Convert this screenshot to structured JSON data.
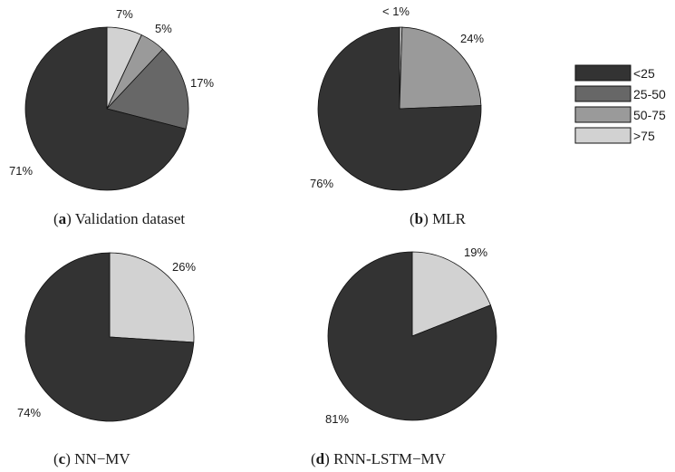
{
  "legend": {
    "items": [
      {
        "label": "<25",
        "color": "#333333"
      },
      {
        "label": "25-50",
        "color": "#676767"
      },
      {
        "label": "50-75",
        "color": "#9a9a9a"
      },
      {
        "label": ">75",
        "color": "#d2d2d2"
      }
    ]
  },
  "chart_data": [
    {
      "type": "pie",
      "caption_letter": "a",
      "caption_text": "Validation dataset",
      "categories": [
        "<25",
        "25-50",
        "50-75",
        ">75"
      ],
      "values": [
        71,
        17,
        5,
        7
      ],
      "labels": [
        "71%",
        "17%",
        "5%",
        "7%"
      ]
    },
    {
      "type": "pie",
      "caption_letter": "b",
      "caption_text": "MLR",
      "categories": [
        "<25",
        "25-50",
        "50-75",
        ">75"
      ],
      "values": [
        76,
        0,
        24,
        0.5
      ],
      "labels": [
        "76%",
        "",
        "24%",
        "< 1%"
      ]
    },
    {
      "type": "pie",
      "caption_letter": "c",
      "caption_text": "NN−MV",
      "categories": [
        "<25",
        "25-50",
        "50-75",
        ">75"
      ],
      "values": [
        74,
        0,
        0,
        26
      ],
      "labels": [
        "74%",
        "",
        "",
        "26%"
      ]
    },
    {
      "type": "pie",
      "caption_letter": "d",
      "caption_text": "RNN-LSTM−MV",
      "categories": [
        "<25",
        "25-50",
        "50-75",
        ">75"
      ],
      "values": [
        81,
        0,
        0,
        19
      ],
      "labels": [
        "81%",
        "",
        "",
        "19%"
      ]
    }
  ]
}
